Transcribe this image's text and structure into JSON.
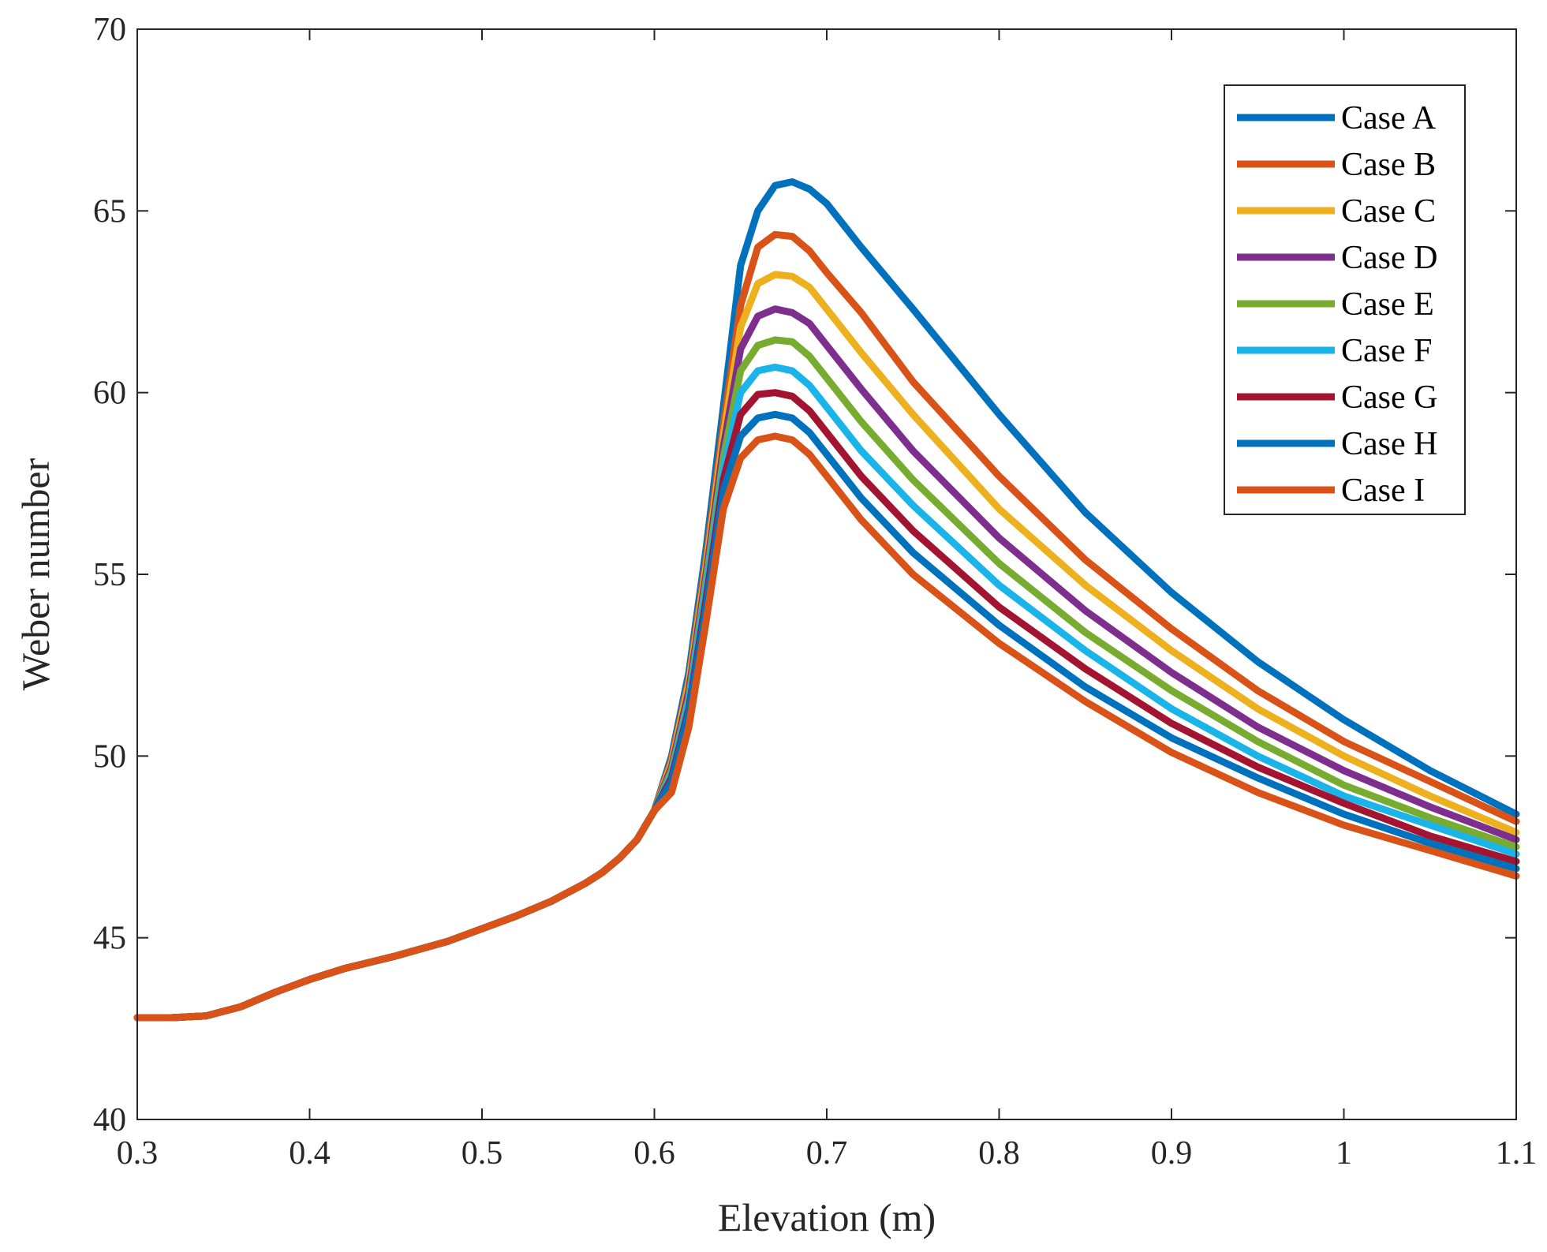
{
  "chart_data": {
    "type": "line",
    "title": "",
    "xlabel": "Elevation (m)",
    "ylabel": "Weber number",
    "xlim": [
      0.3,
      1.1
    ],
    "ylim": [
      40,
      70
    ],
    "xticks": [
      0.3,
      0.4,
      0.5,
      0.6,
      0.7,
      0.8,
      0.9,
      1,
      1.1
    ],
    "xtick_labels": [
      "0.3",
      "0.4",
      "0.5",
      "0.6",
      "0.7",
      "0.8",
      "0.9",
      "1",
      "1.1"
    ],
    "yticks": [
      40,
      45,
      50,
      55,
      60,
      65,
      70
    ],
    "ytick_labels": [
      "40",
      "45",
      "50",
      "55",
      "60",
      "65",
      "70"
    ],
    "grid": false,
    "legend_position": "top-right",
    "shared_prefix": {
      "x": [
        0.3,
        0.32,
        0.34,
        0.36,
        0.38,
        0.4,
        0.42,
        0.45,
        0.48,
        0.5,
        0.52,
        0.54,
        0.56,
        0.57,
        0.58,
        0.59,
        0.6
      ],
      "y": [
        42.8,
        42.8,
        42.85,
        43.1,
        43.5,
        43.85,
        44.15,
        44.5,
        44.9,
        45.25,
        45.6,
        46.0,
        46.5,
        46.8,
        47.2,
        47.7,
        48.5
      ]
    },
    "series": [
      {
        "name": "Case A",
        "color": "#0072BD",
        "x": [
          0.61,
          0.62,
          0.63,
          0.64,
          0.65,
          0.66,
          0.67,
          0.68,
          0.69,
          0.7,
          0.72,
          0.75,
          0.8,
          0.85,
          0.9,
          0.95,
          1.0,
          1.05,
          1.1
        ],
        "y": [
          50.0,
          52.3,
          55.7,
          59.6,
          63.5,
          65.0,
          65.7,
          65.8,
          65.6,
          65.2,
          64.0,
          62.3,
          59.4,
          56.7,
          54.5,
          52.6,
          51.0,
          49.6,
          48.4
        ]
      },
      {
        "name": "Case B",
        "color": "#D95319",
        "x": [
          0.61,
          0.62,
          0.63,
          0.64,
          0.65,
          0.66,
          0.67,
          0.68,
          0.69,
          0.7,
          0.72,
          0.75,
          0.8,
          0.85,
          0.9,
          0.95,
          1.0,
          1.05,
          1.1
        ],
        "y": [
          49.9,
          52.1,
          55.4,
          59.1,
          62.4,
          64.0,
          64.35,
          64.3,
          63.9,
          63.3,
          62.2,
          60.3,
          57.7,
          55.4,
          53.5,
          51.8,
          50.4,
          49.3,
          48.2
        ]
      },
      {
        "name": "Case C",
        "color": "#EDB120",
        "x": [
          0.61,
          0.62,
          0.63,
          0.64,
          0.65,
          0.66,
          0.67,
          0.68,
          0.69,
          0.7,
          0.72,
          0.75,
          0.8,
          0.85,
          0.9,
          0.95,
          1.0,
          1.05,
          1.1
        ],
        "y": [
          49.8,
          52.0,
          55.2,
          58.8,
          61.8,
          63.0,
          63.25,
          63.2,
          62.9,
          62.3,
          61.1,
          59.4,
          56.8,
          54.7,
          52.9,
          51.3,
          50.0,
          48.9,
          47.9
        ]
      },
      {
        "name": "Case D",
        "color": "#7E2F8E",
        "x": [
          0.61,
          0.62,
          0.63,
          0.64,
          0.65,
          0.66,
          0.67,
          0.68,
          0.69,
          0.7,
          0.72,
          0.75,
          0.8,
          0.85,
          0.9,
          0.95,
          1.0,
          1.05,
          1.1
        ],
        "y": [
          49.7,
          51.8,
          55.0,
          58.5,
          61.2,
          62.1,
          62.3,
          62.2,
          61.9,
          61.3,
          60.1,
          58.4,
          56.0,
          54.0,
          52.3,
          50.8,
          49.6,
          48.6,
          47.7
        ]
      },
      {
        "name": "Case E",
        "color": "#77AC30",
        "x": [
          0.61,
          0.62,
          0.63,
          0.64,
          0.65,
          0.66,
          0.67,
          0.68,
          0.69,
          0.7,
          0.72,
          0.75,
          0.8,
          0.85,
          0.9,
          0.95,
          1.0,
          1.05,
          1.1
        ],
        "y": [
          49.6,
          51.6,
          54.8,
          58.2,
          60.6,
          61.3,
          61.45,
          61.4,
          61.0,
          60.4,
          59.2,
          57.6,
          55.3,
          53.4,
          51.8,
          50.4,
          49.2,
          48.3,
          47.5
        ]
      },
      {
        "name": "Case F",
        "color": "#1BB4E8",
        "x": [
          0.61,
          0.62,
          0.63,
          0.64,
          0.65,
          0.66,
          0.67,
          0.68,
          0.69,
          0.7,
          0.72,
          0.75,
          0.8,
          0.85,
          0.9,
          0.95,
          1.0,
          1.05,
          1.1
        ],
        "y": [
          49.5,
          51.5,
          54.6,
          57.9,
          60.0,
          60.6,
          60.7,
          60.6,
          60.2,
          59.6,
          58.4,
          56.9,
          54.7,
          52.9,
          51.3,
          50.0,
          48.9,
          48.1,
          47.3
        ]
      },
      {
        "name": "Case G",
        "color": "#A2142F",
        "x": [
          0.61,
          0.62,
          0.63,
          0.64,
          0.65,
          0.66,
          0.67,
          0.68,
          0.69,
          0.7,
          0.72,
          0.75,
          0.8,
          0.85,
          0.9,
          0.95,
          1.0,
          1.05,
          1.1
        ],
        "y": [
          49.4,
          51.3,
          54.3,
          57.6,
          59.4,
          59.95,
          60.0,
          59.9,
          59.5,
          58.9,
          57.7,
          56.2,
          54.1,
          52.4,
          50.9,
          49.7,
          48.7,
          47.8,
          47.1
        ]
      },
      {
        "name": "Case H",
        "color": "#0072BD",
        "x": [
          0.61,
          0.62,
          0.63,
          0.64,
          0.65,
          0.66,
          0.67,
          0.68,
          0.69,
          0.7,
          0.72,
          0.75,
          0.8,
          0.85,
          0.9,
          0.95,
          1.0,
          1.05,
          1.1
        ],
        "y": [
          49.3,
          51.2,
          54.1,
          57.3,
          58.8,
          59.3,
          59.4,
          59.3,
          58.9,
          58.3,
          57.1,
          55.6,
          53.6,
          51.9,
          50.5,
          49.4,
          48.4,
          47.6,
          46.9
        ]
      },
      {
        "name": "Case I",
        "color": "#D95319",
        "x": [
          0.61,
          0.62,
          0.63,
          0.64,
          0.65,
          0.66,
          0.67,
          0.68,
          0.69,
          0.7,
          0.72,
          0.75,
          0.8,
          0.85,
          0.9,
          0.95,
          1.0,
          1.05,
          1.1
        ],
        "y": [
          49.0,
          50.8,
          53.7,
          56.8,
          58.2,
          58.7,
          58.8,
          58.7,
          58.3,
          57.7,
          56.5,
          55.0,
          53.1,
          51.5,
          50.1,
          49.0,
          48.1,
          47.4,
          46.7
        ]
      }
    ]
  }
}
